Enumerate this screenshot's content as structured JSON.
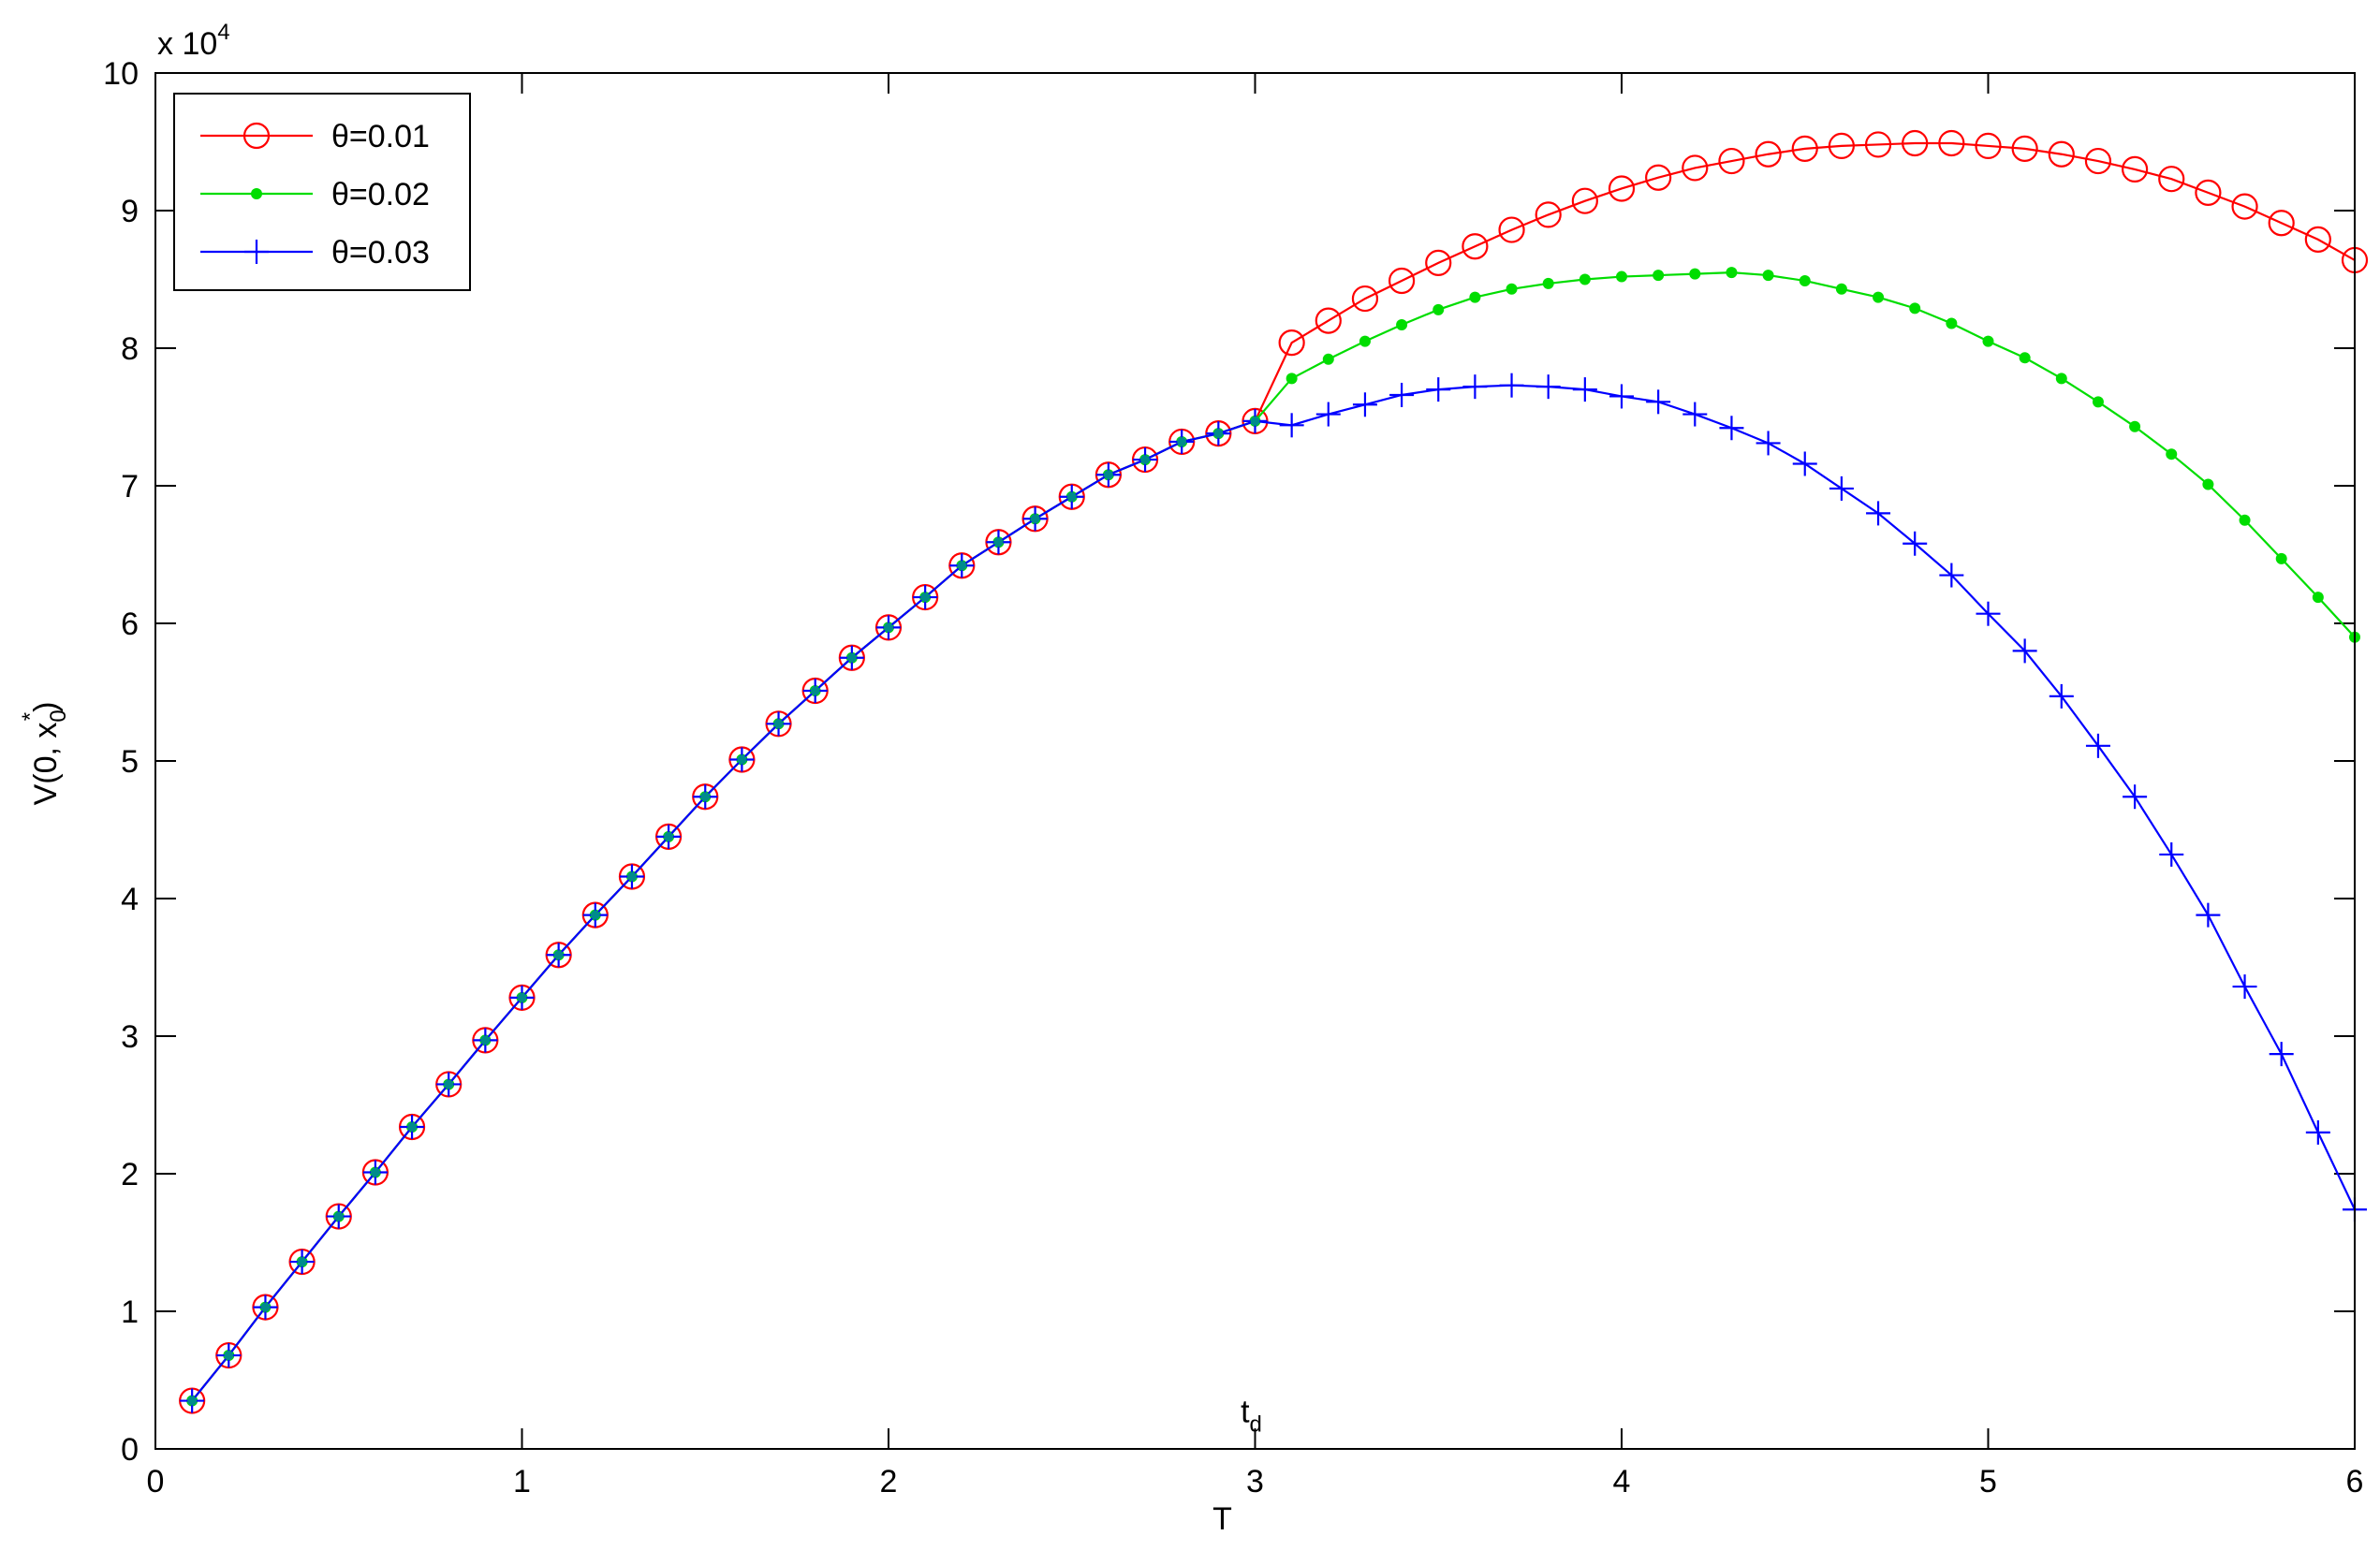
{
  "chart_data": {
    "type": "line",
    "xlabel": "T",
    "ylabel": "V(0, x",
    "ylabel_sub": "0",
    "ylabel_sup": "*",
    "ylabel_close": ")",
    "y_multiplier_base": "x 10",
    "y_multiplier_exp": "4",
    "annotation": {
      "text": "t",
      "sub": "d",
      "x": 3,
      "y": 0.25
    },
    "xlim": [
      0,
      6
    ],
    "ylim": [
      0,
      10
    ],
    "xticks": [
      0,
      1,
      2,
      3,
      4,
      5,
      6
    ],
    "yticks": [
      0,
      1,
      2,
      3,
      4,
      5,
      6,
      7,
      8,
      9,
      10
    ],
    "x_tick_labels": [
      "0",
      "1",
      "2",
      "3",
      "4",
      "5",
      "6"
    ],
    "y_tick_labels": [
      "0",
      "1",
      "2",
      "3",
      "4",
      "5",
      "6",
      "7",
      "8",
      "9",
      "10"
    ],
    "grid": false,
    "legend_position": "top-left",
    "x": [
      0.1,
      0.2,
      0.3,
      0.4,
      0.5,
      0.6,
      0.7,
      0.8,
      0.9,
      1.0,
      1.1,
      1.2,
      1.3,
      1.4,
      1.5,
      1.6,
      1.7,
      1.8,
      1.9,
      2.0,
      2.1,
      2.2,
      2.3,
      2.4,
      2.5,
      2.6,
      2.7,
      2.8,
      2.9,
      3.0,
      3.1,
      3.2,
      3.3,
      3.4,
      3.5,
      3.6,
      3.7,
      3.8,
      3.9,
      4.0,
      4.1,
      4.2,
      4.3,
      4.4,
      4.5,
      4.6,
      4.7,
      4.8,
      4.9,
      5.0,
      5.1,
      5.2,
      5.3,
      5.4,
      5.5,
      5.6,
      5.7,
      5.8,
      5.9,
      6.0
    ],
    "series": [
      {
        "name": "θ=0.01",
        "color": "#ff0000",
        "marker": "circle",
        "values": [
          0.35,
          0.68,
          1.03,
          1.36,
          1.69,
          2.01,
          2.34,
          2.65,
          2.97,
          3.28,
          3.59,
          3.88,
          4.16,
          4.45,
          4.74,
          5.01,
          5.27,
          5.51,
          5.75,
          5.97,
          6.19,
          6.42,
          6.59,
          6.76,
          6.92,
          7.08,
          7.19,
          7.32,
          7.38,
          7.47,
          8.04,
          8.2,
          8.36,
          8.49,
          8.62,
          8.74,
          8.86,
          8.97,
          9.07,
          9.16,
          9.24,
          9.31,
          9.36,
          9.41,
          9.45,
          9.47,
          9.48,
          9.49,
          9.49,
          9.47,
          9.45,
          9.41,
          9.36,
          9.3,
          9.23,
          9.13,
          9.03,
          8.91,
          8.79,
          8.64
        ]
      },
      {
        "name": "θ=0.02",
        "color": "#00dd00",
        "marker": "dot",
        "values": [
          0.35,
          0.68,
          1.03,
          1.36,
          1.69,
          2.01,
          2.34,
          2.65,
          2.97,
          3.28,
          3.59,
          3.88,
          4.16,
          4.45,
          4.74,
          5.01,
          5.27,
          5.51,
          5.75,
          5.97,
          6.19,
          6.42,
          6.59,
          6.76,
          6.92,
          7.08,
          7.19,
          7.32,
          7.38,
          7.47,
          7.78,
          7.92,
          8.05,
          8.17,
          8.28,
          8.37,
          8.43,
          8.47,
          8.5,
          8.52,
          8.53,
          8.54,
          8.55,
          8.53,
          8.49,
          8.43,
          8.37,
          8.29,
          8.18,
          8.05,
          7.93,
          7.78,
          7.61,
          7.43,
          7.23,
          7.01,
          6.75,
          6.47,
          6.19,
          5.9
        ]
      },
      {
        "name": "θ=0.03",
        "color": "#0000ff",
        "marker": "plus",
        "values": [
          0.35,
          0.68,
          1.03,
          1.36,
          1.69,
          2.01,
          2.34,
          2.65,
          2.97,
          3.28,
          3.59,
          3.88,
          4.16,
          4.45,
          4.74,
          5.01,
          5.27,
          5.51,
          5.75,
          5.97,
          6.19,
          6.42,
          6.59,
          6.76,
          6.92,
          7.08,
          7.19,
          7.32,
          7.38,
          7.47,
          7.44,
          7.52,
          7.59,
          7.66,
          7.7,
          7.72,
          7.73,
          7.72,
          7.7,
          7.65,
          7.61,
          7.52,
          7.42,
          7.31,
          7.16,
          6.98,
          6.8,
          6.58,
          6.35,
          6.07,
          5.8,
          5.47,
          5.11,
          4.74,
          4.32,
          3.88,
          3.36,
          2.87,
          2.3,
          1.74
        ]
      }
    ]
  }
}
